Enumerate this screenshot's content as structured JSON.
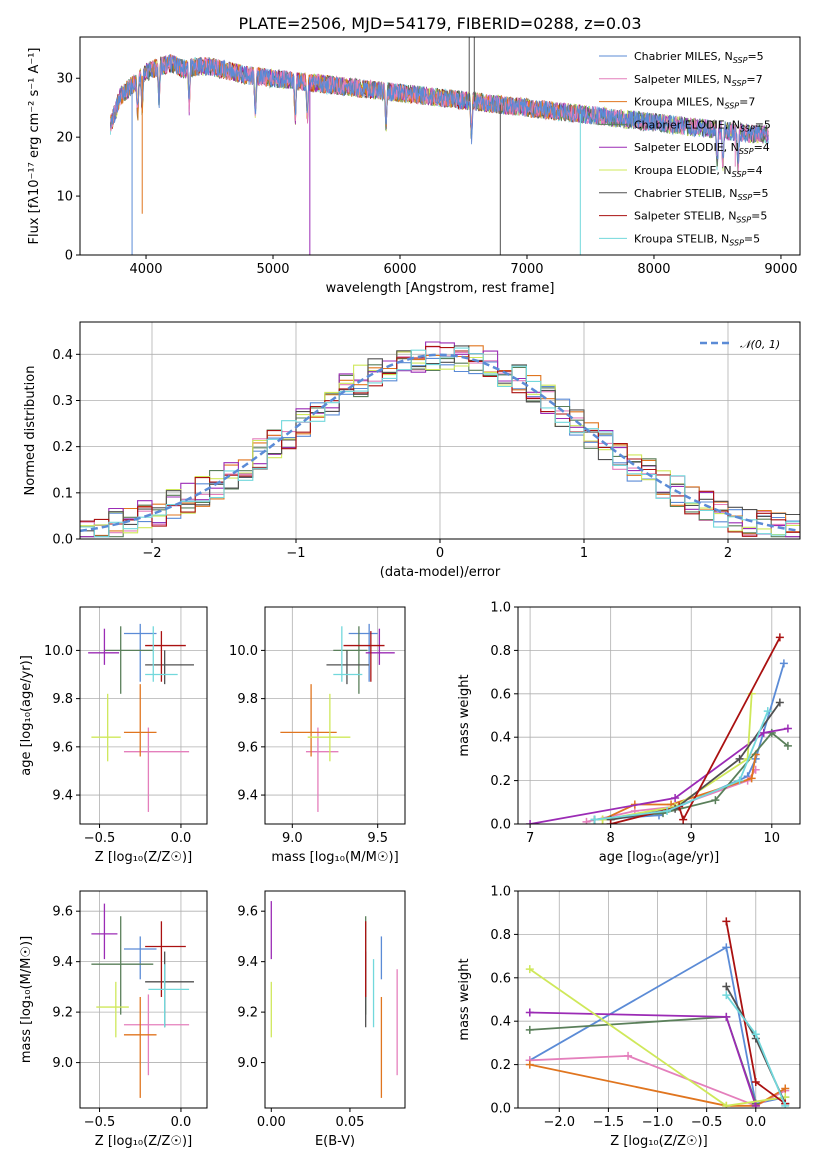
{
  "figure": {
    "title": "PLATE=2506, MJD=54179, FIBERID=0288, z=0.03"
  },
  "palette": {
    "Chabrier MILES": "#5b8bd6",
    "Salpeter MILES": "#e47fbc",
    "Kroupa MILES": "#e0751f",
    "Chabrier ELODIE": "#5a7f5a",
    "Salpeter ELODIE": "#9b2bb5",
    "Kroupa ELODIE": "#cfe85a",
    "Chabrier STELIB": "#505050",
    "Salpeter STELIB": "#aa1111",
    "Kroupa STELIB": "#72d8dc"
  },
  "chart_data": [
    {
      "id": "spectrum",
      "type": "line",
      "title": "PLATE=2506, MJD=54179, FIBERID=0288, z=0.03",
      "xlabel": "wavelength [Angstrom, rest frame]",
      "ylabel": "Flux [fλ10⁻¹⁷ erg cm⁻² s⁻¹ A⁻¹]",
      "xlim": [
        3480,
        9150
      ],
      "ylim": [
        0,
        37
      ],
      "xticks": [
        4000,
        5000,
        6000,
        7000,
        8000,
        9000
      ],
      "yticks": [
        0,
        10,
        20,
        30
      ],
      "grid": false,
      "legend_position": "top-right",
      "legend": [
        {
          "label": "Chabrier MILES, N",
          "sub": "SSP",
          "tail": "=5"
        },
        {
          "label": "Salpeter MILES, N",
          "sub": "SSP",
          "tail": "=7"
        },
        {
          "label": "Kroupa MILES, N",
          "sub": "SSP",
          "tail": "=7"
        },
        {
          "label": "Chabrier ELODIE, N",
          "sub": "SSP",
          "tail": "=5"
        },
        {
          "label": "Salpeter ELODIE, N",
          "sub": "SSP",
          "tail": "=4"
        },
        {
          "label": "Kroupa ELODIE, N",
          "sub": "SSP",
          "tail": "=4"
        },
        {
          "label": "Chabrier STELIB, N",
          "sub": "SSP",
          "tail": "=5"
        },
        {
          "label": "Salpeter STELIB, N",
          "sub": "SSP",
          "tail": "=5"
        },
        {
          "label": "Kroupa STELIB, N",
          "sub": "SSP",
          "tail": "=5"
        }
      ],
      "continuum": {
        "x": [
          3720,
          3800,
          3900,
          4000,
          4100,
          4200,
          4300,
          4400,
          4500,
          4600,
          4700,
          4800,
          5000,
          5200,
          5400,
          5600,
          5800,
          6000,
          6200,
          6400,
          6600,
          6800,
          7000,
          7200,
          7400,
          7600,
          7800,
          8000,
          8200,
          8400,
          8600,
          8800,
          8900
        ],
        "y": [
          22,
          27,
          29,
          31,
          32,
          32.5,
          31.5,
          32,
          32,
          31.5,
          31,
          30.5,
          30,
          29.5,
          29,
          28.5,
          28,
          27.5,
          27,
          26.5,
          26,
          25.5,
          25,
          24.5,
          24,
          23.5,
          23,
          22.5,
          22,
          21.5,
          21,
          20.5,
          20.5
        ]
      },
      "absorption_lines": [
        3934,
        3969,
        4102,
        4340,
        4861,
        5175,
        5270,
        5890,
        6563,
        8498,
        8542,
        8662
      ],
      "deep_dips": [
        {
          "x": 3890,
          "y": 0
        },
        {
          "x": 3970,
          "y": 7
        },
        {
          "x": 5290,
          "y": 0
        },
        {
          "x": 6790,
          "y": 0
        },
        {
          "x": 7420,
          "y": 0
        },
        {
          "x": 8640,
          "y": 15
        }
      ],
      "spikes": [
        {
          "x": 6545,
          "y": 37
        },
        {
          "x": 6585,
          "y": 37
        }
      ]
    },
    {
      "id": "residuals",
      "type": "histogram",
      "xlabel": "(data-model)/error",
      "ylabel": "Normed distribution",
      "xlim": [
        -2.5,
        2.5
      ],
      "ylim": [
        0,
        0.47
      ],
      "xticks": [
        -2,
        -1,
        0,
        1,
        2
      ],
      "yticks": [
        0.0,
        0.1,
        0.2,
        0.3,
        0.4
      ],
      "grid": true,
      "legend_position": "top-right",
      "legend": [
        {
          "label": "N(0,1)",
          "style": "dashed"
        }
      ],
      "bin_width": 0.1
    },
    {
      "id": "age-vs-Z",
      "type": "scatter",
      "xlabel": "Z [log₁₀(Z/Z☉)]",
      "ylabel": "age  [log₁₀(age/yr)]",
      "xlim": [
        -0.62,
        0.16
      ],
      "ylim": [
        9.28,
        10.18
      ],
      "xticks": [
        -0.5,
        0.0
      ],
      "yticks": [
        9.4,
        9.6,
        9.8,
        10.0
      ],
      "grid": true,
      "points": [
        {
          "series": "Chabrier MILES",
          "x": -0.25,
          "y": 10.07,
          "xerr": [
            0.1,
            0.1
          ],
          "yerr": [
            0.2,
            0.04
          ]
        },
        {
          "series": "Salpeter MILES",
          "x": -0.2,
          "y": 9.58,
          "xerr": [
            0.15,
            0.25
          ],
          "yerr": [
            0.25,
            0.1
          ]
        },
        {
          "series": "Kroupa MILES",
          "x": -0.25,
          "y": 9.66,
          "xerr": [
            0.1,
            0.1
          ],
          "yerr": [
            0.1,
            0.2
          ]
        },
        {
          "series": "Chabrier ELODIE",
          "x": -0.37,
          "y": 10.0,
          "xerr": [
            0.1,
            0.2
          ],
          "yerr": [
            0.18,
            0.1
          ]
        },
        {
          "series": "Salpeter ELODIE",
          "x": -0.47,
          "y": 9.99,
          "xerr": [
            0.1,
            0.09
          ],
          "yerr": [
            0.05,
            0.1
          ]
        },
        {
          "series": "Kroupa ELODIE",
          "x": -0.45,
          "y": 9.64,
          "xerr": [
            0.1,
            0.08
          ],
          "yerr": [
            0.1,
            0.18
          ]
        },
        {
          "series": "Chabrier STELIB",
          "x": -0.1,
          "y": 9.94,
          "xerr": [
            0.12,
            0.18
          ],
          "yerr": [
            0.08,
            0.06
          ]
        },
        {
          "series": "Salpeter STELIB",
          "x": -0.12,
          "y": 10.02,
          "xerr": [
            0.1,
            0.15
          ],
          "yerr": [
            0.15,
            0.06
          ]
        },
        {
          "series": "Kroupa STELIB",
          "x": -0.17,
          "y": 9.9,
          "xerr": [
            0.05,
            0.15
          ],
          "yerr": [
            0.03,
            0.2
          ]
        }
      ]
    },
    {
      "id": "age-vs-mass",
      "type": "scatter",
      "xlabel": "mass [log₁₀(M/M☉)]",
      "ylabel": "",
      "xlim": [
        8.84,
        9.66
      ],
      "ylim": [
        9.28,
        10.18
      ],
      "xticks": [
        9.0,
        9.5
      ],
      "yticks": [
        9.4,
        9.6,
        9.8,
        10.0
      ],
      "grid": true,
      "points": [
        {
          "series": "Chabrier MILES",
          "x": 9.45,
          "y": 10.07,
          "xerr": [
            0.12,
            0.05
          ],
          "yerr": [
            0.2,
            0.04
          ]
        },
        {
          "series": "Salpeter MILES",
          "x": 9.15,
          "y": 9.58,
          "xerr": [
            0.07,
            0.12
          ],
          "yerr": [
            0.25,
            0.1
          ]
        },
        {
          "series": "Kroupa MILES",
          "x": 9.11,
          "y": 9.66,
          "xerr": [
            0.18,
            0.15
          ],
          "yerr": [
            0.1,
            0.2
          ]
        },
        {
          "series": "Chabrier ELODIE",
          "x": 9.39,
          "y": 10.0,
          "xerr": [
            0.15,
            0.05
          ],
          "yerr": [
            0.18,
            0.1
          ]
        },
        {
          "series": "Salpeter ELODIE",
          "x": 9.51,
          "y": 9.99,
          "xerr": [
            0.08,
            0.09
          ],
          "yerr": [
            0.05,
            0.1
          ]
        },
        {
          "series": "Kroupa ELODIE",
          "x": 9.22,
          "y": 9.64,
          "xerr": [
            0.13,
            0.12
          ],
          "yerr": [
            0.1,
            0.18
          ]
        },
        {
          "series": "Chabrier STELIB",
          "x": 9.32,
          "y": 9.94,
          "xerr": [
            0.12,
            0.13
          ],
          "yerr": [
            0.08,
            0.06
          ]
        },
        {
          "series": "Salpeter STELIB",
          "x": 9.46,
          "y": 10.02,
          "xerr": [
            0.16,
            0.08
          ],
          "yerr": [
            0.15,
            0.06
          ]
        },
        {
          "series": "Kroupa STELIB",
          "x": 9.29,
          "y": 9.9,
          "xerr": [
            0.05,
            0.12
          ],
          "yerr": [
            0.03,
            0.2
          ]
        }
      ]
    },
    {
      "id": "mass-weight-vs-age",
      "type": "line",
      "xlabel": "age  [log₁₀(age/yr)]",
      "ylabel": "mass weight",
      "xlim": [
        6.85,
        10.35
      ],
      "ylim": [
        0,
        1
      ],
      "xticks": [
        7,
        8,
        9,
        10
      ],
      "yticks": [
        0.0,
        0.2,
        0.4,
        0.6,
        0.8,
        1.0
      ],
      "grid": true,
      "series": [
        {
          "name": "Chabrier MILES",
          "x": [
            7.8,
            8.6,
            9.7,
            9.8,
            10.15
          ],
          "y": [
            0.02,
            0.04,
            0.22,
            0.3,
            0.74
          ]
        },
        {
          "name": "Salpeter MILES",
          "x": [
            7.7,
            8.3,
            8.8,
            9.7,
            9.8
          ],
          "y": [
            0.01,
            0.06,
            0.08,
            0.2,
            0.25
          ]
        },
        {
          "name": "Kroupa MILES",
          "x": [
            7.9,
            8.3,
            8.75,
            9.75,
            9.8
          ],
          "y": [
            0.02,
            0.09,
            0.09,
            0.21,
            0.32
          ]
        },
        {
          "name": "Chabrier ELODIE",
          "x": [
            7.8,
            8.65,
            9.3,
            10.0,
            10.2
          ],
          "y": [
            0.02,
            0.05,
            0.11,
            0.42,
            0.36
          ]
        },
        {
          "name": "Salpeter ELODIE",
          "x": [
            7.0,
            8.8,
            9.9,
            10.2
          ],
          "y": [
            0.0,
            0.12,
            0.42,
            0.44
          ]
        },
        {
          "name": "Kroupa ELODIE",
          "x": [
            7.9,
            8.8,
            9.7,
            9.75
          ],
          "y": [
            0.02,
            0.08,
            0.3,
            0.6
          ]
        },
        {
          "name": "Chabrier STELIB",
          "x": [
            8.0,
            8.8,
            9.6,
            10.1
          ],
          "y": [
            0.02,
            0.07,
            0.3,
            0.56
          ]
        },
        {
          "name": "Salpeter STELIB",
          "x": [
            8.0,
            8.85,
            8.9,
            10.1
          ],
          "y": [
            0.0,
            0.08,
            0.02,
            0.86
          ]
        },
        {
          "name": "Kroupa STELIB",
          "x": [
            7.8,
            8.7,
            9.6,
            9.95
          ],
          "y": [
            0.02,
            0.06,
            0.2,
            0.52
          ]
        }
      ]
    },
    {
      "id": "mass-vs-Z",
      "type": "scatter",
      "xlabel": "Z [log₁₀(Z/Z☉)]",
      "ylabel": "mass [log₁₀(M/M☉)]",
      "xlim": [
        -0.62,
        0.16
      ],
      "ylim": [
        8.82,
        9.68
      ],
      "xticks": [
        -0.5,
        0.0
      ],
      "yticks": [
        9.0,
        9.2,
        9.4,
        9.6
      ],
      "grid": true,
      "points": [
        {
          "series": "Chabrier MILES",
          "x": -0.25,
          "y": 9.45,
          "xerr": [
            0.1,
            0.1
          ],
          "yerr": [
            0.12,
            0.05
          ]
        },
        {
          "series": "Salpeter MILES",
          "x": -0.2,
          "y": 9.15,
          "xerr": [
            0.15,
            0.25
          ],
          "yerr": [
            0.2,
            0.12
          ]
        },
        {
          "series": "Kroupa MILES",
          "x": -0.25,
          "y": 9.11,
          "xerr": [
            0.1,
            0.1
          ],
          "yerr": [
            0.25,
            0.15
          ]
        },
        {
          "series": "Chabrier ELODIE",
          "x": -0.37,
          "y": 9.39,
          "xerr": [
            0.18,
            0.2
          ],
          "yerr": [
            0.2,
            0.19
          ]
        },
        {
          "series": "Salpeter ELODIE",
          "x": -0.47,
          "y": 9.51,
          "xerr": [
            0.08,
            0.08
          ],
          "yerr": [
            0.1,
            0.12
          ]
        },
        {
          "series": "Kroupa ELODIE",
          "x": -0.4,
          "y": 9.22,
          "xerr": [
            0.12,
            0.08
          ],
          "yerr": [
            0.12,
            0.1
          ]
        },
        {
          "series": "Chabrier STELIB",
          "x": -0.1,
          "y": 9.32,
          "xerr": [
            0.12,
            0.18
          ],
          "yerr": [
            0.18,
            0.12
          ]
        },
        {
          "series": "Salpeter STELIB",
          "x": -0.12,
          "y": 9.46,
          "xerr": [
            0.1,
            0.15
          ],
          "yerr": [
            0.2,
            0.1
          ]
        },
        {
          "series": "Kroupa STELIB",
          "x": -0.1,
          "y": 9.29,
          "xerr": [
            0.1,
            0.15
          ],
          "yerr": [
            0.15,
            0.1
          ]
        }
      ]
    },
    {
      "id": "mass-vs-EBV",
      "type": "scatter",
      "xlabel": "E(B-V)",
      "ylabel": "",
      "xlim": [
        -0.004,
        0.085
      ],
      "ylim": [
        8.82,
        9.68
      ],
      "xticks": [
        0.0,
        0.05
      ],
      "yticks": [
        9.0,
        9.2,
        9.4,
        9.6
      ],
      "grid": false,
      "points": [
        {
          "series": "Chabrier MILES",
          "x": 0.07,
          "y": 9.45,
          "xerr": [
            0,
            0
          ],
          "yerr": [
            0.12,
            0.05
          ]
        },
        {
          "series": "Salpeter MILES",
          "x": 0.08,
          "y": 9.15,
          "xerr": [
            0,
            0
          ],
          "yerr": [
            0.2,
            0.22
          ]
        },
        {
          "series": "Kroupa MILES",
          "x": 0.07,
          "y": 9.11,
          "xerr": [
            0,
            0
          ],
          "yerr": [
            0.25,
            0.15
          ]
        },
        {
          "series": "Chabrier ELODIE",
          "x": 0.06,
          "y": 9.39,
          "xerr": [
            0,
            0
          ],
          "yerr": [
            0.2,
            0.19
          ]
        },
        {
          "series": "Salpeter ELODIE",
          "x": 0.0,
          "y": 9.51,
          "xerr": [
            0,
            0
          ],
          "yerr": [
            0.1,
            0.13
          ]
        },
        {
          "series": "Kroupa ELODIE",
          "x": 0.0,
          "y": 9.22,
          "xerr": [
            0,
            0
          ],
          "yerr": [
            0.12,
            0.1
          ]
        },
        {
          "series": "Chabrier STELIB",
          "x": 0.06,
          "y": 9.32,
          "xerr": [
            0,
            0
          ],
          "yerr": [
            0.18,
            0.12
          ]
        },
        {
          "series": "Salpeter STELIB",
          "x": 0.06,
          "y": 9.46,
          "xerr": [
            0,
            0
          ],
          "yerr": [
            0.2,
            0.1
          ]
        },
        {
          "series": "Kroupa STELIB",
          "x": 0.065,
          "y": 9.29,
          "xerr": [
            0,
            0
          ],
          "yerr": [
            0.15,
            0.12
          ]
        }
      ]
    },
    {
      "id": "mass-weight-vs-Z",
      "type": "line",
      "xlabel": "Z [log₁₀(Z/Z☉)]",
      "ylabel": "mass weight",
      "xlim": [
        -2.42,
        0.45
      ],
      "ylim": [
        0,
        1
      ],
      "xticks": [
        -2.0,
        -1.5,
        -1.0,
        -0.5,
        0.0
      ],
      "yticks": [
        0.0,
        0.2,
        0.4,
        0.6,
        0.8,
        1.0
      ],
      "grid": true,
      "series": [
        {
          "name": "Chabrier MILES",
          "x": [
            -2.3,
            -0.3,
            0.0,
            0.3
          ],
          "y": [
            0.22,
            0.74,
            0.02,
            0.05
          ]
        },
        {
          "name": "Salpeter MILES",
          "x": [
            -2.3,
            -1.3,
            0.0,
            0.3
          ],
          "y": [
            0.22,
            0.24,
            0.01,
            0.08
          ]
        },
        {
          "name": "Kroupa MILES",
          "x": [
            -2.3,
            -0.3,
            0.0,
            0.3
          ],
          "y": [
            0.2,
            0.01,
            0.01,
            0.09
          ]
        },
        {
          "name": "Chabrier ELODIE",
          "x": [
            -2.3,
            -0.3,
            0.0
          ],
          "y": [
            0.36,
            0.42,
            0.02
          ]
        },
        {
          "name": "Salpeter ELODIE",
          "x": [
            -2.3,
            -0.3,
            0.0
          ],
          "y": [
            0.44,
            0.42,
            0.01
          ]
        },
        {
          "name": "Kroupa ELODIE",
          "x": [
            -2.3,
            -0.3,
            0.3
          ],
          "y": [
            0.64,
            0.01,
            0.05
          ]
        },
        {
          "name": "Chabrier STELIB",
          "x": [
            -0.3,
            0.0,
            0.3
          ],
          "y": [
            0.56,
            0.32,
            0.02
          ]
        },
        {
          "name": "Salpeter STELIB",
          "x": [
            -0.3,
            0.0,
            0.3
          ],
          "y": [
            0.86,
            0.12,
            0.02
          ]
        },
        {
          "name": "Kroupa STELIB",
          "x": [
            -0.3,
            0.0,
            0.3
          ],
          "y": [
            0.52,
            0.34,
            0.01
          ]
        }
      ]
    }
  ]
}
